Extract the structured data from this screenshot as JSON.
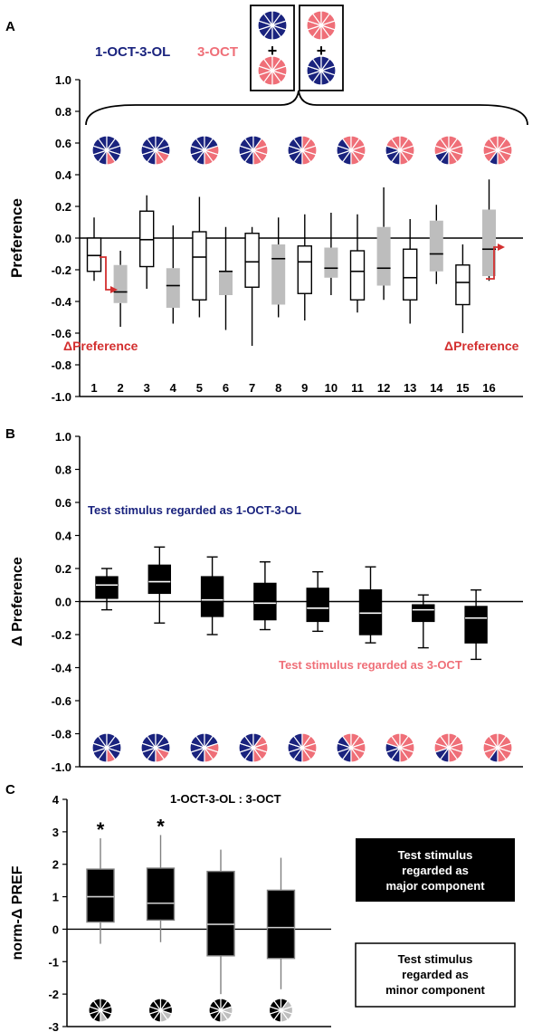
{
  "colors": {
    "navy": "#1a237e",
    "pink": "#ef6f78",
    "gray_box": "#bdbdbd",
    "red_arrow": "#d32f2f",
    "black": "#000000",
    "white": "#ffffff"
  },
  "panel_a": {
    "label": "A",
    "legend_oct_ol": "1-OCT-3-OL",
    "legend_oct": "3-OCT",
    "plus": "+",
    "delta_label_left": "ΔPreference",
    "delta_label_right": "ΔPreference"
  },
  "panel_b": {
    "label": "B",
    "annotation_top": "Test stimulus regarded as  1-OCT-3-OL",
    "annotation_bottom": "Test stimulus regarded as  3-OCT"
  },
  "panel_c": {
    "label": "C",
    "ratio_label": "1-OCT-3-OL : 3-OCT",
    "legend_major": [
      "Test stimulus",
      "regarded as",
      "major component"
    ],
    "legend_minor": [
      "Test stimulus",
      "regarded as",
      "minor component"
    ],
    "star": "*"
  },
  "icons": {
    "panel_a": [
      9,
      8,
      7,
      6,
      5,
      4,
      3,
      2,
      1
    ],
    "panel_b": [
      9,
      8,
      7,
      6,
      5,
      4,
      3,
      2,
      1
    ],
    "panel_c": [
      9,
      8,
      7,
      6
    ]
  },
  "chart_data": [
    {
      "type": "box",
      "panel": "A",
      "xlabel": "",
      "ylabel": "Preference",
      "ylim": [
        -1.0,
        1.0
      ],
      "yticks": [
        "1.0",
        "0.8",
        "0.6",
        "0.4",
        "0.2",
        "0.0",
        "-0.2",
        "-0.4",
        "-0.6",
        "-0.8",
        "-1.0"
      ],
      "categories": [
        "1",
        "2",
        "3",
        "4",
        "5",
        "6",
        "7",
        "8",
        "9",
        "10",
        "11",
        "12",
        "13",
        "14",
        "15",
        "16"
      ],
      "boxes": [
        {
          "min": -0.27,
          "q1": -0.21,
          "median": -0.11,
          "q3": 0.0,
          "max": 0.13,
          "fill": "white"
        },
        {
          "min": -0.56,
          "q1": -0.41,
          "median": -0.34,
          "q3": -0.17,
          "max": -0.08,
          "fill": "gray"
        },
        {
          "min": -0.32,
          "q1": -0.18,
          "median": -0.01,
          "q3": 0.17,
          "max": 0.27,
          "fill": "white"
        },
        {
          "min": -0.54,
          "q1": -0.44,
          "median": -0.3,
          "q3": -0.19,
          "max": 0.08,
          "fill": "gray"
        },
        {
          "min": -0.5,
          "q1": -0.39,
          "median": -0.12,
          "q3": 0.04,
          "max": 0.26,
          "fill": "white"
        },
        {
          "min": -0.58,
          "q1": -0.36,
          "median": -0.21,
          "q3": -0.21,
          "max": 0.07,
          "fill": "gray"
        },
        {
          "min": -0.68,
          "q1": -0.31,
          "median": -0.15,
          "q3": 0.03,
          "max": 0.07,
          "fill": "white"
        },
        {
          "min": -0.5,
          "q1": -0.42,
          "median": -0.13,
          "q3": -0.04,
          "max": 0.13,
          "fill": "gray"
        },
        {
          "min": -0.52,
          "q1": -0.35,
          "median": -0.15,
          "q3": -0.05,
          "max": 0.15,
          "fill": "white"
        },
        {
          "min": -0.36,
          "q1": -0.25,
          "median": -0.19,
          "q3": -0.06,
          "max": 0.16,
          "fill": "gray"
        },
        {
          "min": -0.47,
          "q1": -0.39,
          "median": -0.21,
          "q3": -0.08,
          "max": 0.15,
          "fill": "white"
        },
        {
          "min": -0.39,
          "q1": -0.3,
          "median": -0.19,
          "q3": 0.07,
          "max": 0.32,
          "fill": "gray"
        },
        {
          "min": -0.54,
          "q1": -0.39,
          "median": -0.25,
          "q3": -0.07,
          "max": 0.12,
          "fill": "white"
        },
        {
          "min": -0.29,
          "q1": -0.21,
          "median": -0.1,
          "q3": 0.11,
          "max": 0.21,
          "fill": "gray"
        },
        {
          "min": -0.6,
          "q1": -0.42,
          "median": -0.28,
          "q3": -0.17,
          "max": -0.04,
          "fill": "white"
        },
        {
          "min": -0.27,
          "q1": -0.24,
          "median": -0.07,
          "q3": 0.18,
          "max": 0.37,
          "fill": "gray"
        }
      ]
    },
    {
      "type": "box",
      "panel": "B",
      "xlabel": "",
      "ylabel": "Δ Preference",
      "ylim": [
        -1.0,
        1.0
      ],
      "yticks": [
        "1.0",
        "0.8",
        "0.6",
        "0.4",
        "0.2",
        "0.0",
        "-0.2",
        "-0.4",
        "-0.6",
        "-0.8",
        "-1.0"
      ],
      "boxes": [
        {
          "min": -0.05,
          "q1": 0.02,
          "median": 0.1,
          "q3": 0.15,
          "max": 0.2
        },
        {
          "min": -0.13,
          "q1": 0.05,
          "median": 0.12,
          "q3": 0.22,
          "max": 0.33
        },
        {
          "min": -0.2,
          "q1": -0.09,
          "median": 0.01,
          "q3": 0.15,
          "max": 0.27
        },
        {
          "min": -0.17,
          "q1": -0.11,
          "median": -0.01,
          "q3": 0.11,
          "max": 0.24
        },
        {
          "min": -0.18,
          "q1": -0.12,
          "median": -0.04,
          "q3": 0.08,
          "max": 0.18
        },
        {
          "min": -0.25,
          "q1": -0.2,
          "median": -0.07,
          "q3": 0.07,
          "max": 0.21
        },
        {
          "min": -0.28,
          "q1": -0.12,
          "median": -0.05,
          "q3": -0.02,
          "max": 0.04
        },
        {
          "min": -0.35,
          "q1": -0.25,
          "median": -0.1,
          "q3": -0.03,
          "max": 0.07
        }
      ]
    },
    {
      "type": "box",
      "panel": "C",
      "xlabel": "",
      "ylabel": "norm-Δ PREF",
      "ylim": [
        -3,
        4
      ],
      "yticks": [
        "4",
        "3",
        "2",
        "1",
        "0",
        "-1",
        "-2",
        "-3"
      ],
      "boxes": [
        {
          "min": -0.45,
          "q1": 0.22,
          "median": 1.0,
          "q3": 1.85,
          "max": 2.8,
          "star": true
        },
        {
          "min": -0.4,
          "q1": 0.28,
          "median": 0.8,
          "q3": 1.88,
          "max": 2.9,
          "star": true
        },
        {
          "min": -2.0,
          "q1": -0.82,
          "median": 0.15,
          "q3": 1.78,
          "max": 2.45,
          "star": false
        },
        {
          "min": -1.85,
          "q1": -0.9,
          "median": 0.05,
          "q3": 1.2,
          "max": 2.2,
          "star": false
        }
      ]
    }
  ]
}
